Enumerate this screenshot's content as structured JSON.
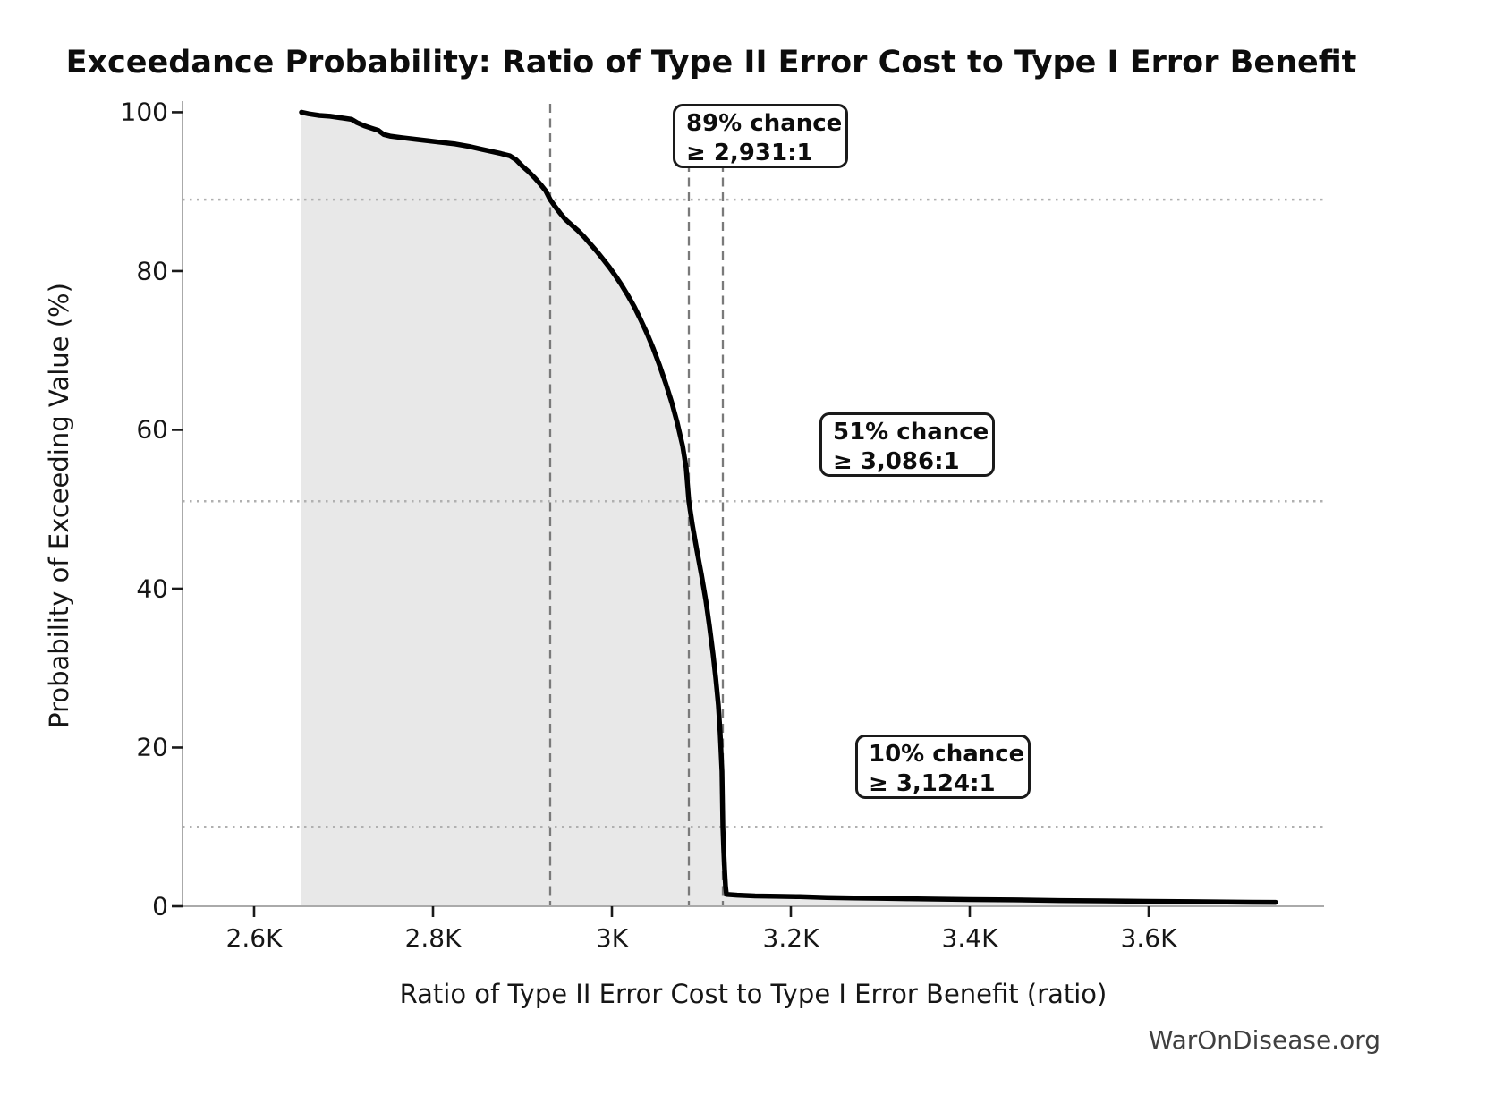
{
  "figure": {
    "title": "Exceedance Probability: Ratio of Type II Error Cost to Type I Error Benefit",
    "credit": "WarOnDisease.org"
  },
  "chart_data": {
    "type": "area",
    "title": "Exceedance Probability: Ratio of Type II Error Cost to Type I Error Benefit",
    "xlabel": "Ratio of Type II Error Cost to Type I Error Benefit (ratio)",
    "ylabel": "Probability of Exceeding Value (%)",
    "xlim": [
      2520,
      3796
    ],
    "ylim": [
      0,
      101.4
    ],
    "grid": false,
    "legend_position": "none",
    "x_ticks": [
      {
        "value": 2600,
        "label": "2.6K"
      },
      {
        "value": 2800,
        "label": "2.8K"
      },
      {
        "value": 3000,
        "label": "3K"
      },
      {
        "value": 3200,
        "label": "3.2K"
      },
      {
        "value": 3400,
        "label": "3.4K"
      },
      {
        "value": 3600,
        "label": "3.6K"
      }
    ],
    "y_ticks": [
      {
        "value": 0,
        "label": "0"
      },
      {
        "value": 20,
        "label": "20"
      },
      {
        "value": 40,
        "label": "40"
      },
      {
        "value": 60,
        "label": "60"
      },
      {
        "value": 80,
        "label": "80"
      },
      {
        "value": 100,
        "label": "100"
      }
    ],
    "series": [
      {
        "name": "exceedance-curve",
        "x": [
          2653,
          2661,
          2673,
          2685,
          2697,
          2709,
          2715,
          2723,
          2731,
          2739,
          2745,
          2752,
          2765,
          2780,
          2795,
          2810,
          2825,
          2840,
          2852,
          2864,
          2876,
          2886,
          2893,
          2900,
          2907,
          2914,
          2921,
          2926,
          2931,
          2936,
          2942,
          2948,
          2955,
          2962,
          2969,
          2976,
          2983,
          2990,
          2997,
          3004,
          3011,
          3018,
          3025,
          3032,
          3039,
          3046,
          3053,
          3060,
          3067,
          3073,
          3079,
          3083,
          3086,
          3090,
          3095,
          3100,
          3105,
          3109,
          3113,
          3116,
          3119,
          3121,
          3123,
          3124,
          3125,
          3126,
          3127,
          3128,
          3140,
          3160,
          3185,
          3210,
          3240,
          3270,
          3300,
          3330,
          3360,
          3400,
          3450,
          3500,
          3550,
          3600,
          3650,
          3700,
          3742
        ],
        "y": [
          100,
          99.8,
          99.6,
          99.5,
          99.3,
          99.1,
          98.7,
          98.3,
          98.0,
          97.7,
          97.2,
          97.0,
          96.8,
          96.6,
          96.4,
          96.2,
          96.0,
          95.7,
          95.4,
          95.1,
          94.8,
          94.5,
          94.0,
          93.2,
          92.5,
          91.7,
          90.8,
          90.1,
          89.0,
          88.2,
          87.3,
          86.5,
          85.8,
          85.1,
          84.3,
          83.4,
          82.5,
          81.5,
          80.5,
          79.4,
          78.2,
          76.9,
          75.5,
          73.9,
          72.2,
          70.3,
          68.2,
          65.9,
          63.4,
          60.9,
          58.0,
          55.2,
          51.0,
          48.0,
          44.8,
          41.8,
          38.5,
          35.3,
          31.8,
          28.8,
          25.3,
          21.8,
          17.0,
          10.0,
          7.0,
          4.5,
          2.5,
          1.5,
          1.4,
          1.3,
          1.25,
          1.2,
          1.1,
          1.05,
          1.0,
          0.95,
          0.9,
          0.85,
          0.8,
          0.72,
          0.68,
          0.62,
          0.58,
          0.52,
          0.5
        ]
      }
    ],
    "reference_lines": {
      "vertical_values": [
        2931,
        3086,
        3124
      ],
      "horizontal_percents": [
        89,
        51,
        10
      ]
    },
    "annotations": [
      {
        "line1": "89% chance",
        "line2": "≥ 2,931:1",
        "ratio": 2931,
        "percent": 89
      },
      {
        "line1": "51% chance",
        "line2": "≥ 3,086:1",
        "ratio": 3086,
        "percent": 51
      },
      {
        "line1": "10% chance",
        "line2": "≥ 3,124:1",
        "ratio": 3124,
        "percent": 10
      }
    ],
    "colors": {
      "curve": "#000000",
      "fill": "#e8e8e8",
      "dashed_reference": "#7a7a7a",
      "dotted_reference": "#b0b0b0",
      "spine": "#aaaaaa",
      "tick": "#1a1a1a",
      "credit_text": "#404040"
    }
  }
}
